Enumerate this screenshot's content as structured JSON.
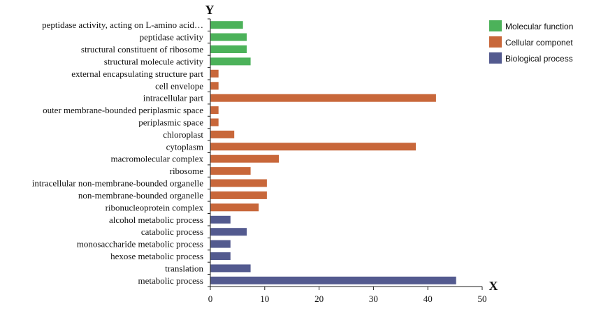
{
  "chart_data": {
    "type": "bar",
    "orientation": "horizontal",
    "xlabel": "X",
    "ylabel": "Y",
    "xlim": [
      0,
      50
    ],
    "xticks": [
      "0",
      "10",
      "20",
      "30",
      "40",
      "50"
    ],
    "grid": false,
    "legend_position": "top-right",
    "colors": {
      "Molecular function": "#4cb25a",
      "Cellular componet": "#c8673a",
      "Biological process": "#535a8f"
    },
    "series": [
      {
        "name": "Molecular function"
      },
      {
        "name": "Cellular componet"
      },
      {
        "name": "Biological process"
      }
    ],
    "categories": [
      {
        "label": "peptidase activity, acting on L-amino acid…",
        "value": 6,
        "group": "Molecular function"
      },
      {
        "label": "peptidase activity",
        "value": 6.7,
        "group": "Molecular function"
      },
      {
        "label": "structural constituent of ribosome",
        "value": 6.7,
        "group": "Molecular function"
      },
      {
        "label": "structural molecule activity",
        "value": 7.4,
        "group": "Molecular function"
      },
      {
        "label": "external encapsulating structure part",
        "value": 1.5,
        "group": "Cellular componet"
      },
      {
        "label": "cell envelope",
        "value": 1.5,
        "group": "Cellular componet"
      },
      {
        "label": "intracellular part",
        "value": 41.5,
        "group": "Cellular componet"
      },
      {
        "label": "outer membrane-bounded periplasmic space",
        "value": 1.5,
        "group": "Cellular componet"
      },
      {
        "label": "periplasmic space",
        "value": 1.5,
        "group": "Cellular componet"
      },
      {
        "label": "chloroplast",
        "value": 4.4,
        "group": "Cellular componet"
      },
      {
        "label": "cytoplasm",
        "value": 37.8,
        "group": "Cellular componet"
      },
      {
        "label": "macromolecular complex",
        "value": 12.6,
        "group": "Cellular componet"
      },
      {
        "label": "ribosome",
        "value": 7.4,
        "group": "Cellular componet"
      },
      {
        "label": "intracellular non-membrane-bounded organelle",
        "value": 10.4,
        "group": "Cellular componet"
      },
      {
        "label": "non-membrane-bounded organelle",
        "value": 10.4,
        "group": "Cellular componet"
      },
      {
        "label": "ribonucleoprotein complex",
        "value": 8.9,
        "group": "Cellular componet"
      },
      {
        "label": "alcohol metabolic process",
        "value": 3.7,
        "group": "Biological process"
      },
      {
        "label": "catabolic process",
        "value": 6.7,
        "group": "Biological process"
      },
      {
        "label": "monosaccharide metabolic process",
        "value": 3.7,
        "group": "Biological process"
      },
      {
        "label": "hexose metabolic process",
        "value": 3.7,
        "group": "Biological process"
      },
      {
        "label": "translation",
        "value": 7.4,
        "group": "Biological process"
      },
      {
        "label": "metabolic process",
        "value": 45.2,
        "group": "Biological process"
      }
    ]
  }
}
